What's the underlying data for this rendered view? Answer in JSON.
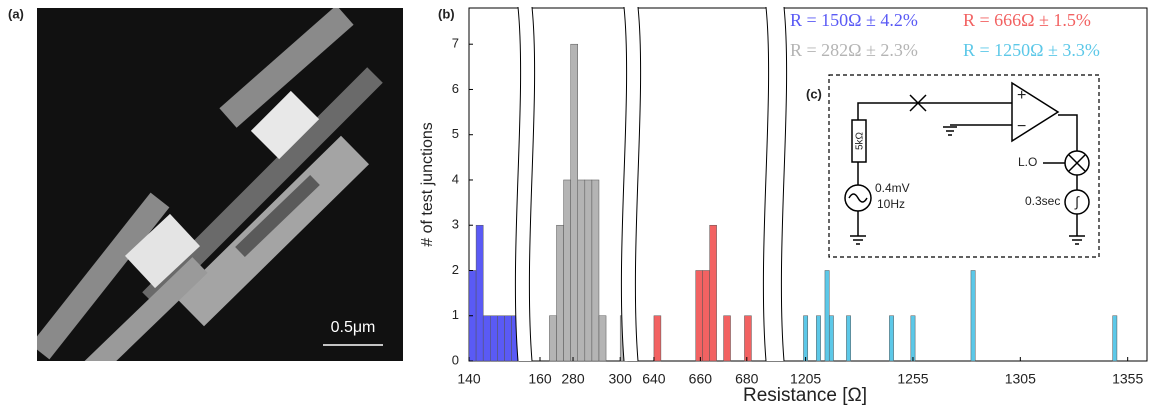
{
  "panels": {
    "a": "(a)",
    "b": "(b)"
  },
  "micrograph": {
    "scale_bar": "0.5μm"
  },
  "circuit": {
    "label": "(c)",
    "resistor": "5kΩ",
    "source_amplitude": "0.4mV",
    "source_frequency": "10Hz",
    "plus": "+",
    "minus": "−",
    "local_oscillator": "L.O",
    "integrator_time": "0.3sec",
    "integrator": "∫"
  },
  "chart_data": {
    "type": "histogram",
    "xlabel": "Resistance [Ω]",
    "ylabel": "# of test junctions",
    "ylim": [
      0,
      7.8
    ],
    "yticks": [
      0,
      1,
      2,
      3,
      4,
      5,
      6,
      7
    ],
    "series": [
      {
        "name": "R = 150Ω ± 4.2%",
        "color": "#5a5af5",
        "xlim": [
          140,
          160
        ],
        "xticks": [
          140,
          160
        ],
        "bins": [
          140,
          142,
          144,
          146,
          148,
          150,
          152,
          154
        ],
        "values": [
          2,
          3,
          1,
          1,
          1,
          1,
          1
        ]
      },
      {
        "name": "R = 282Ω ± 2.3%",
        "color": "#b4b4b4",
        "xlim": [
          266,
          305
        ],
        "xticks": [
          280,
          300
        ],
        "bins": [
          270,
          273,
          276,
          279,
          282,
          285,
          288,
          291,
          294,
          297,
          300,
          303
        ],
        "values": [
          1,
          3,
          4,
          7,
          4,
          4,
          4,
          1,
          0,
          0,
          1
        ]
      },
      {
        "name": "R = 666Ω ± 1.5%",
        "color": "#f26262",
        "xlim": [
          634,
          690
        ],
        "xticks": [
          640,
          660,
          680
        ],
        "bins": [
          640,
          643,
          646,
          649,
          652,
          655,
          658,
          661,
          664,
          667,
          670,
          673,
          676,
          679,
          682
        ],
        "values": [
          1,
          0,
          0,
          0,
          0,
          0,
          2,
          2,
          3,
          0,
          1,
          0,
          0,
          1
        ]
      },
      {
        "name": "R = 1250Ω ± 3.3%",
        "color": "#5cc8e8",
        "xlim": [
          1194,
          1364
        ],
        "xticks": [
          1205,
          1255,
          1305,
          1355
        ],
        "bins": [
          1204,
          1206,
          1208,
          1210,
          1212,
          1214,
          1216,
          1218,
          1220,
          1222,
          1224,
          1226,
          1228,
          1230,
          1232,
          1234,
          1236,
          1238,
          1240,
          1242,
          1244,
          1246,
          1248,
          1250,
          1252,
          1254,
          1256,
          1258,
          1260,
          1262,
          1264,
          1266,
          1268,
          1270,
          1272,
          1274,
          1276,
          1278,
          1280,
          1282,
          1284,
          1286,
          1288,
          1290,
          1292,
          1294,
          1296,
          1298,
          1300,
          1302,
          1304,
          1306,
          1308,
          1310,
          1312,
          1314,
          1316,
          1318,
          1320,
          1322,
          1324,
          1326,
          1328,
          1330,
          1332,
          1334,
          1336,
          1338,
          1340,
          1342,
          1344,
          1346,
          1348,
          1350
        ],
        "values": [
          1,
          0,
          0,
          1,
          0,
          2,
          1,
          0,
          0,
          0,
          1,
          0,
          0,
          0,
          0,
          0,
          0,
          0,
          0,
          0,
          1,
          0,
          0,
          0,
          0,
          1,
          0,
          0,
          0,
          0,
          0,
          0,
          0,
          0,
          0,
          0,
          0,
          0,
          0,
          2,
          0,
          0,
          0,
          0,
          0,
          0,
          0,
          0,
          0,
          0,
          0,
          0,
          0,
          0,
          0,
          0,
          0,
          0,
          0,
          0,
          0,
          0,
          0,
          0,
          0,
          0,
          0,
          0,
          0,
          0,
          0,
          0,
          1
        ]
      }
    ]
  }
}
